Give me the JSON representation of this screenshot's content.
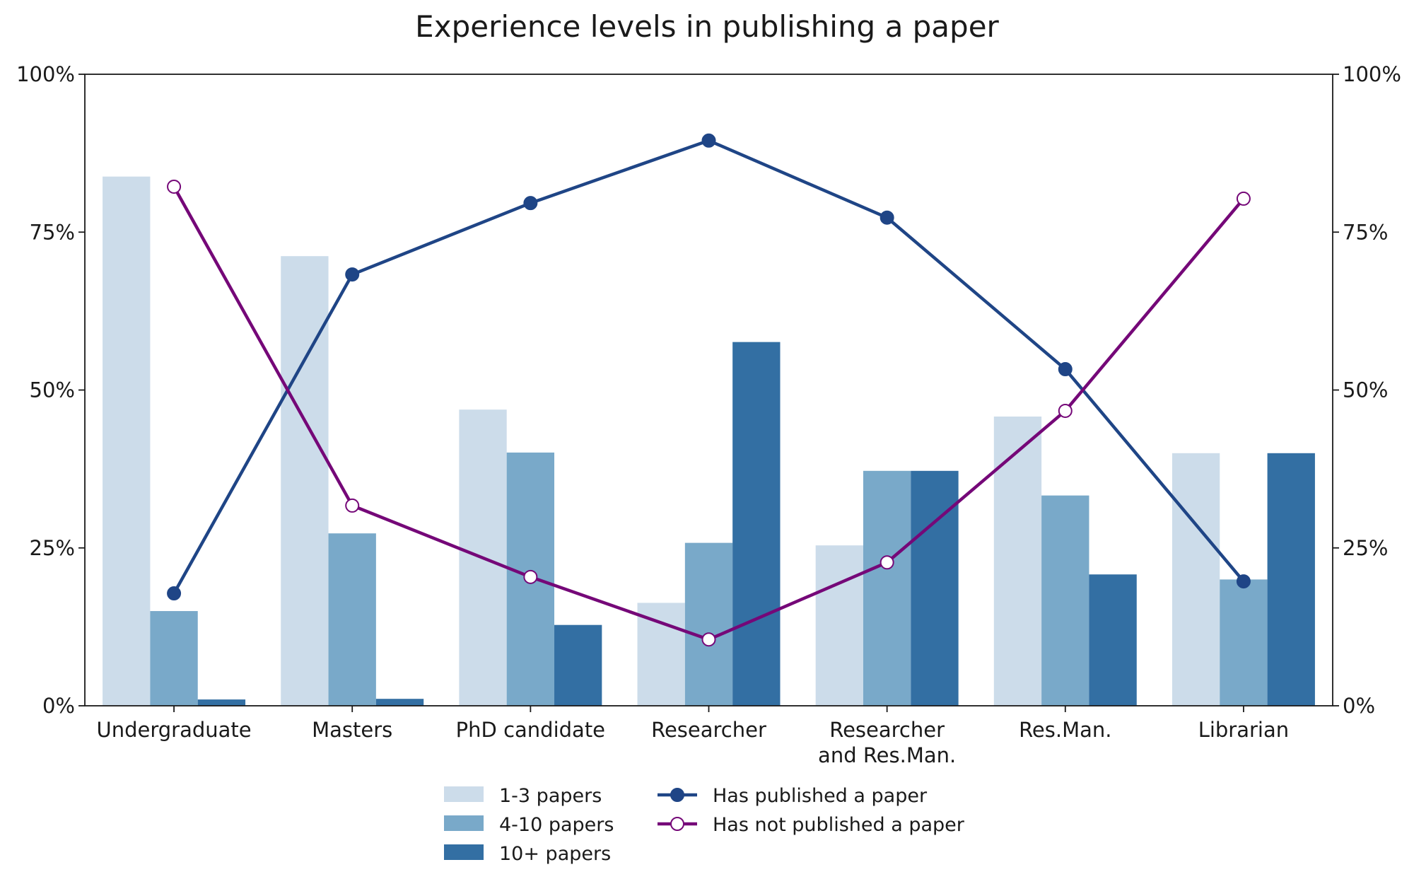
{
  "chart_data": {
    "type": "bar",
    "title": "Experience levels in publishing a paper",
    "xlabel": "",
    "ylabel": "",
    "ylim": [
      0,
      100
    ],
    "y_ticks": [
      "0%",
      "25%",
      "50%",
      "75%",
      "100%"
    ],
    "y_tick_values": [
      0,
      25,
      50,
      75,
      100
    ],
    "secondary_axis": {
      "ylim": [
        0,
        100
      ],
      "ticks": [
        "0%",
        "25%",
        "50%",
        "75%",
        "100%"
      ]
    },
    "categories": [
      [
        "Undergraduate"
      ],
      [
        "Masters"
      ],
      [
        "PhD candidate"
      ],
      [
        "Researcher"
      ],
      [
        "Researcher",
        "and Res.Man."
      ],
      [
        "Res.Man."
      ],
      [
        "Librarian"
      ]
    ],
    "series": [
      {
        "name": "1-3 papers",
        "type": "bar",
        "color": "#ccdcea",
        "values": [
          83.8,
          71.2,
          46.9,
          16.3,
          25.4,
          45.8,
          40.0
        ]
      },
      {
        "name": "4-10 papers",
        "type": "bar",
        "color": "#79a9c9",
        "values": [
          15.0,
          27.3,
          40.1,
          25.8,
          37.2,
          33.3,
          20.0
        ]
      },
      {
        "name": "10+ papers",
        "type": "bar",
        "color": "#336fa3",
        "values": [
          1.0,
          1.1,
          12.8,
          57.6,
          37.2,
          20.8,
          40.0
        ]
      },
      {
        "name": "Has published a paper",
        "type": "line",
        "color": "#1f4586",
        "marker": "filled-circle",
        "values": [
          17.8,
          68.3,
          79.6,
          89.5,
          77.3,
          53.3,
          19.7
        ]
      },
      {
        "name": "Has not published a paper",
        "type": "line",
        "color": "#750878",
        "marker": "open-circle",
        "values": [
          82.2,
          31.7,
          20.4,
          10.5,
          22.7,
          46.7,
          80.3
        ]
      }
    ],
    "grid": false,
    "legend": "bottom-center, two columns"
  }
}
